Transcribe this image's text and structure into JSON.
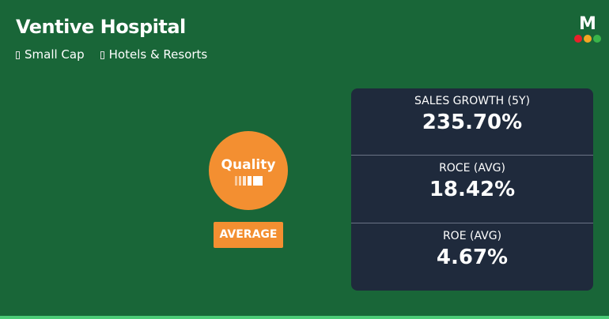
{
  "company": {
    "name": "Ventive Hospital",
    "tags": [
      {
        "icon": "cap-icon",
        "label": "Small Cap"
      },
      {
        "icon": "sector-icon",
        "label": "Hotels & Resorts"
      }
    ]
  },
  "logo": {
    "letter": "M",
    "dot_colors": [
      "#e8202a",
      "#f5a623",
      "#3ab54a"
    ]
  },
  "quality": {
    "label": "Quality",
    "rating": "AVERAGE",
    "color": "#f38f31",
    "level": "4 of 5"
  },
  "metrics": [
    {
      "label": "SALES GROWTH (5Y)",
      "value": "235.70%"
    },
    {
      "label": "ROCE (AVG)",
      "value": "18.42%"
    },
    {
      "label": "ROE (AVG)",
      "value": "4.67%"
    }
  ]
}
